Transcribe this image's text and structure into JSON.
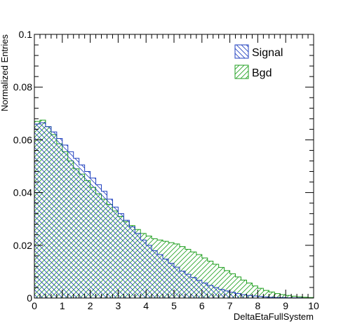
{
  "chart_data": {
    "type": "step-histogram",
    "xlabel": "DeltaEtaFullSystem",
    "ylabel": "Normalized Entries",
    "xlim": [
      0,
      10
    ],
    "ylim": [
      0,
      0.1
    ],
    "x_ticks": [
      "0",
      "1",
      "2",
      "3",
      "4",
      "5",
      "6",
      "7",
      "8",
      "9",
      "10"
    ],
    "y_ticks": [
      "0",
      "0.02",
      "0.04",
      "0.06",
      "0.08",
      "0.1"
    ],
    "bin_width": 0.2,
    "legend_position": "top-right",
    "grid": false,
    "series": [
      {
        "name": "Signal",
        "color": "#1f3fbf",
        "hatch": "diagonal-backslash",
        "values": [
          0.066,
          0.0665,
          0.065,
          0.063,
          0.0605,
          0.058,
          0.0555,
          0.053,
          0.0505,
          0.048,
          0.0455,
          0.043,
          0.0405,
          0.0375,
          0.0345,
          0.032,
          0.0295,
          0.027,
          0.0245,
          0.022,
          0.02,
          0.018,
          0.0165,
          0.0148,
          0.0132,
          0.0117,
          0.0102,
          0.009,
          0.0078,
          0.0067,
          0.0057,
          0.0048,
          0.004,
          0.0033,
          0.0027,
          0.0022,
          0.0017,
          0.0013,
          0.001,
          0.0008,
          0.0006,
          0.0004,
          0.0003,
          0.0002,
          0.0002,
          0.0001,
          0.0001,
          0.0001,
          0.0,
          0.0
        ]
      },
      {
        "name": "Bgd",
        "color": "#1f9f1f",
        "hatch": "diagonal-slash",
        "values": [
          0.067,
          0.0675,
          0.065,
          0.062,
          0.0585,
          0.0555,
          0.052,
          0.049,
          0.047,
          0.0445,
          0.042,
          0.0395,
          0.0375,
          0.0355,
          0.033,
          0.031,
          0.029,
          0.0275,
          0.026,
          0.0245,
          0.0235,
          0.0225,
          0.022,
          0.0215,
          0.021,
          0.0205,
          0.0195,
          0.0185,
          0.0175,
          0.0165,
          0.0152,
          0.014,
          0.0128,
          0.0116,
          0.0104,
          0.0092,
          0.008,
          0.0068,
          0.0057,
          0.0046,
          0.0037,
          0.0029,
          0.0023,
          0.0017,
          0.0013,
          0.001,
          0.0007,
          0.0005,
          0.0003,
          0.0002
        ]
      }
    ]
  }
}
